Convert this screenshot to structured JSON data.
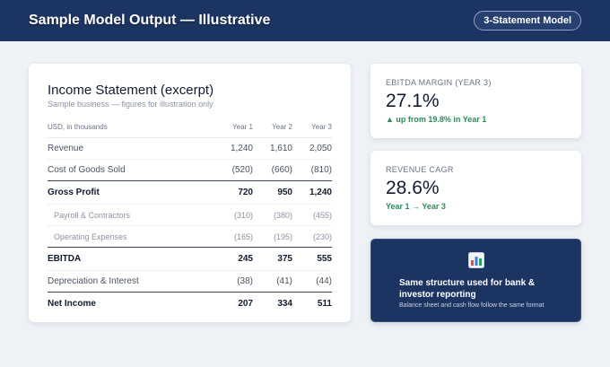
{
  "header": {
    "title": "Sample Model Output — Illustrative",
    "badge": "3-Statement Model"
  },
  "income_statement": {
    "title": "Income Statement (excerpt)",
    "subtitle": "Sample business — figures for illustration only",
    "columns": [
      "USD, in thousands",
      "Year 1",
      "Year 2",
      "Year 3"
    ],
    "rows": [
      {
        "label": "Revenue",
        "y1": "1,240",
        "y2": "1,610",
        "y3": "2,050"
      },
      {
        "label": "Cost of Goods Sold",
        "y1": "(520)",
        "y2": "(660)",
        "y3": "(810)"
      },
      {
        "label": "Gross Profit",
        "y1": "720",
        "y2": "950",
        "y3": "1,240"
      },
      {
        "label": "Payroll & Contractors",
        "y1": "(310)",
        "y2": "(380)",
        "y3": "(455)"
      },
      {
        "label": "Operating Expenses",
        "y1": "(165)",
        "y2": "(195)",
        "y3": "(230)"
      },
      {
        "label": "EBITDA",
        "y1": "245",
        "y2": "375",
        "y3": "555"
      },
      {
        "label": "Depreciation & Interest",
        "y1": "(38)",
        "y2": "(41)",
        "y3": "(44)"
      },
      {
        "label": "Net Income",
        "y1": "207",
        "y2": "334",
        "y3": "511"
      }
    ]
  },
  "kpis": [
    {
      "label": "EBITDA MARGIN (YEAR 3)",
      "value": "27.1%",
      "note": "▲ up from 19.8% in Year 1"
    },
    {
      "label": "REVENUE CAGR",
      "value": "28.6%",
      "note": "Year 1 → Year 3"
    }
  ],
  "promo": {
    "icon": "bar-chart-icon",
    "title": "Same structure used for bank & investor reporting",
    "subtitle": "Balance sheet and cash flow follow the same format"
  },
  "colors": {
    "header_bg": "#1c3461",
    "page_bg": "#eef1f6",
    "positive_green": "#2e8a5a"
  }
}
